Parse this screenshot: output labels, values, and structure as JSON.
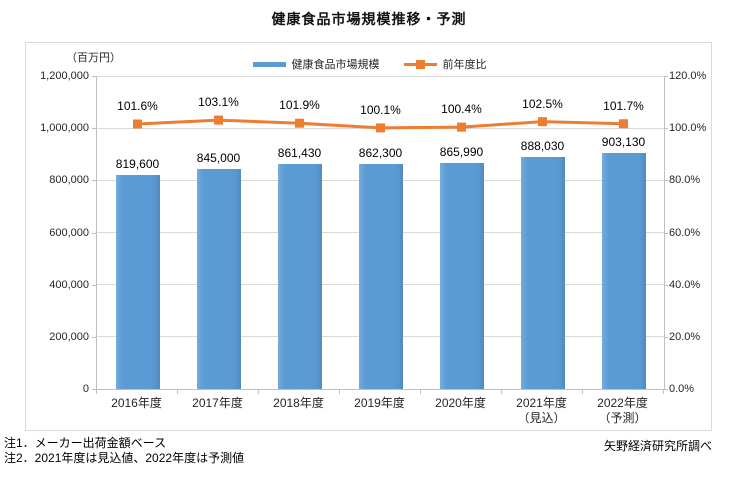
{
  "title": "健康食品市場規模推移・予測",
  "notes": [
    "注1．メーカー出荷金額ベース",
    "注2．2021年度は見込値、2022年度は予測値"
  ],
  "source": "矢野経済研究所調べ",
  "chart_data": {
    "type": "bar",
    "subtype": "combo-bar-line",
    "title": "健康食品市場規模推移・予測",
    "categories": [
      "2016年度",
      "2017年度",
      "2018年度",
      "2019年度",
      "2020年度",
      "2021年度\n（見込）",
      "2022年度\n（予測）"
    ],
    "series": [
      {
        "name": "健康食品市場規模",
        "type": "bar",
        "axis": "left",
        "color": "#5B9BD5",
        "values": [
          819600,
          845000,
          861430,
          862300,
          865990,
          888030,
          903130
        ],
        "labels": [
          "819,600",
          "845,000",
          "861,430",
          "862,300",
          "865,990",
          "888,030",
          "903,130"
        ]
      },
      {
        "name": "前年度比",
        "type": "line",
        "axis": "right",
        "color": "#ED7D31",
        "values": [
          101.6,
          103.1,
          101.9,
          100.1,
          100.4,
          102.5,
          101.7
        ],
        "labels": [
          "101.6%",
          "103.1%",
          "101.9%",
          "100.1%",
          "100.4%",
          "102.5%",
          "101.7%"
        ]
      }
    ],
    "left_axis": {
      "unit": "（百万円）",
      "min": 0,
      "max": 1200000,
      "step": 200000,
      "ticks": [
        "0",
        "200,000",
        "400,000",
        "600,000",
        "800,000",
        "1,000,000",
        "1,200,000"
      ]
    },
    "right_axis": {
      "min": 0,
      "max": 120,
      "step": 20,
      "ticks": [
        "0.0%",
        "20.0%",
        "40.0%",
        "60.0%",
        "80.0%",
        "100.0%",
        "120.0%"
      ]
    },
    "legend": {
      "position": "top",
      "entries": [
        "健康食品市場規模",
        "前年度比"
      ]
    },
    "grid": true
  }
}
